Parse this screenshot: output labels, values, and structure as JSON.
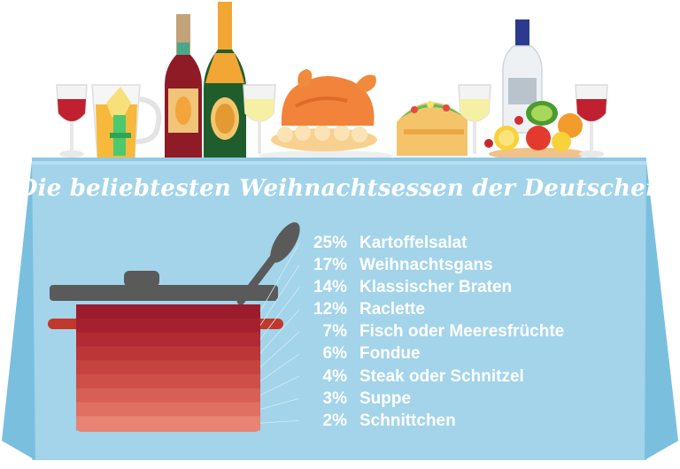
{
  "chart_data": {
    "type": "bar",
    "title": "Die beliebtesten Weihnachtsessen der Deutschen",
    "categories": [
      "Kartoffelsalat",
      "Weihnachtsgans",
      "Klassischer Braten",
      "Raclette",
      "Fisch oder Meeresfrüchte",
      "Fondue",
      "Steak oder Schnitzel",
      "Suppe",
      "Schnittchen"
    ],
    "values": [
      25,
      17,
      14,
      12,
      7,
      6,
      4,
      3,
      2
    ],
    "value_labels": [
      "25%",
      "17%",
      "14%",
      "12%",
      "7%",
      "6%",
      "4%",
      "3%",
      "2%"
    ],
    "unit": "%",
    "legend_position": "right",
    "grid": false,
    "stack_colors": [
      "#9b1c2c",
      "#a52130",
      "#b12a34",
      "#bc3538",
      "#c5423f",
      "#ce4f48",
      "#d75f55",
      "#df7062",
      "#e78474"
    ]
  },
  "colors": {
    "tablecloth": "#a3d4ea",
    "tablecloth_dark": "#7bbfdf",
    "pot_lid": "#5a5a5a",
    "pot_body": "#c0392b",
    "text": "#ffffff"
  },
  "icons": [
    "wine-glass-icon",
    "juice-pitcher-icon",
    "wine-bottle-icon",
    "champagne-bottle-icon",
    "roast-chicken-icon",
    "taco-icon",
    "liquor-bottle-icon",
    "fruit-platter-icon",
    "cooking-pot-icon",
    "ladle-icon"
  ]
}
